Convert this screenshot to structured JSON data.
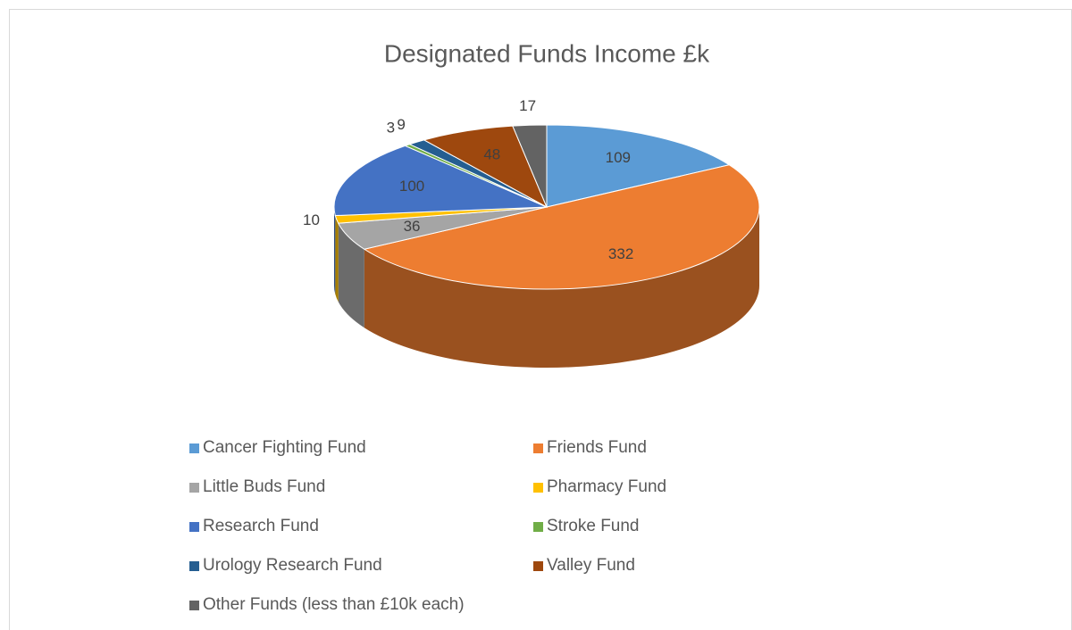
{
  "chart_data": {
    "type": "pie",
    "title": "Designated Funds Income £k",
    "categories": [
      "Cancer Fighting Fund",
      "Friends Fund",
      "Little Buds Fund",
      "Pharmacy Fund",
      "Research Fund",
      "Stroke Fund",
      "Urology Research Fund",
      "Valley Fund",
      "Other Funds (less than £10k each)"
    ],
    "values": [
      109,
      332,
      36,
      10,
      100,
      3,
      9,
      48,
      17
    ],
    "colors": [
      "#5b9bd5",
      "#ed7d31",
      "#a5a5a5",
      "#ffc000",
      "#4472c4",
      "#70ad47",
      "#255e91",
      "#9e480e",
      "#636363"
    ],
    "legend": "bottom"
  }
}
